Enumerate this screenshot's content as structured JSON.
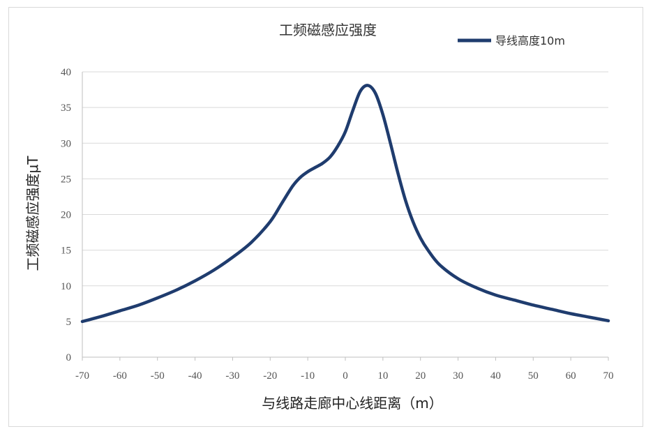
{
  "chart_data": {
    "type": "line",
    "title": "工频磁感应强度",
    "xlabel": "与线路走廊中心线距离（m）",
    "ylabel": "工频磁感应强度μT",
    "xlim": [
      -70,
      70
    ],
    "ylim": [
      0,
      40
    ],
    "x_ticks": [
      "-70",
      "-60",
      "-50",
      "-40",
      "-30",
      "-20",
      "-10",
      "0",
      "10",
      "20",
      "30",
      "40",
      "50",
      "60",
      "70"
    ],
    "y_ticks": [
      "0",
      "5",
      "10",
      "15",
      "20",
      "25",
      "30",
      "35",
      "40"
    ],
    "grid": "horizontal",
    "legend_position": "top-right",
    "series": [
      {
        "name": "导线高度10m",
        "color": "#1f3c6e",
        "x": [
          -70,
          -65,
          -60,
          -55,
          -50,
          -45,
          -40,
          -35,
          -30,
          -25,
          -20,
          -17,
          -14,
          -12,
          -10,
          -8,
          -6,
          -4,
          -2,
          0,
          2,
          4,
          6,
          8,
          10,
          12,
          14,
          16,
          18,
          20,
          22,
          25,
          30,
          35,
          40,
          45,
          50,
          55,
          60,
          65,
          70
        ],
        "y": [
          5.0,
          5.7,
          6.5,
          7.3,
          8.3,
          9.4,
          10.7,
          12.2,
          14.0,
          16.1,
          19.0,
          21.5,
          24.0,
          25.2,
          26.0,
          26.6,
          27.2,
          28.1,
          29.6,
          31.6,
          34.6,
          37.3,
          38.1,
          37.0,
          34.0,
          30.0,
          25.8,
          22.0,
          19.0,
          16.7,
          15.0,
          13.0,
          11.0,
          9.7,
          8.7,
          8.0,
          7.3,
          6.7,
          6.1,
          5.6,
          5.1
        ]
      }
    ]
  }
}
